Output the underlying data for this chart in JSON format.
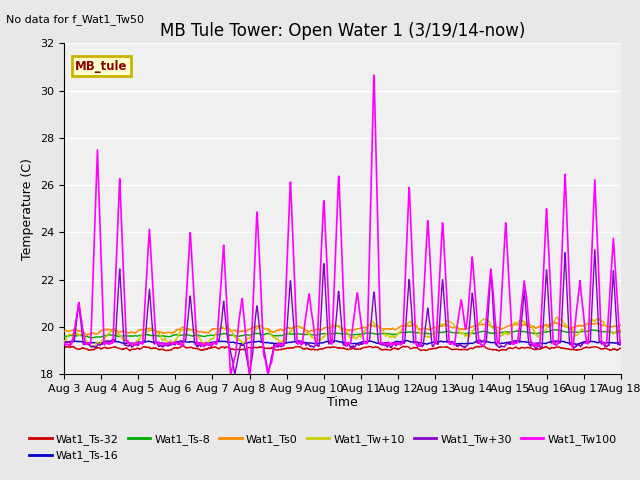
{
  "title": "MB Tule Tower: Open Water 1 (3/19/14-now)",
  "top_left_text": "No data for f_Wat1_Tw50",
  "xlabel": "Time",
  "ylabel": "Temperature (C)",
  "ylim": [
    18,
    32
  ],
  "xlim": [
    0,
    15
  ],
  "yticks": [
    18,
    20,
    22,
    24,
    26,
    28,
    30,
    32
  ],
  "xtick_labels": [
    "Aug 3",
    "Aug 4",
    "Aug 5",
    "Aug 6",
    "Aug 7",
    "Aug 8",
    "Aug 9",
    "Aug 10",
    "Aug 11",
    "Aug 12",
    "Aug 13",
    "Aug 14",
    "Aug 15",
    "Aug 16",
    "Aug 17",
    "Aug 18"
  ],
  "legend_box_text": "MB_tule",
  "legend_box_color": "#c8b400",
  "legend_box_bg": "#ffffcc",
  "series": [
    {
      "name": "Wat1_Ts-32",
      "color": "#cc0000",
      "lw": 1.0
    },
    {
      "name": "Wat1_Ts-16",
      "color": "#0000cc",
      "lw": 1.0
    },
    {
      "name": "Wat1_Ts-8",
      "color": "#00aa00",
      "lw": 1.0
    },
    {
      "name": "Wat1_Ts0",
      "color": "#ff8800",
      "lw": 1.0
    },
    {
      "name": "Wat1_Tw+10",
      "color": "#cccc00",
      "lw": 1.0
    },
    {
      "name": "Wat1_Tw+30",
      "color": "#8800cc",
      "lw": 1.0
    },
    {
      "name": "Wat1_Tw100",
      "color": "#ff00ff",
      "lw": 1.2
    }
  ],
  "background_color": "#e8e8e8",
  "plot_bg": "#f0f0f0",
  "grid_color": "#ffffff",
  "title_fontsize": 12,
  "axis_fontsize": 9,
  "tick_fontsize": 8,
  "figsize": [
    6.4,
    4.8
  ],
  "dpi": 100,
  "tw100_peaks_x": [
    0.4,
    0.9,
    1.5,
    2.3,
    3.4,
    4.3,
    4.8,
    5.2,
    6.1,
    6.6,
    7.0,
    7.4,
    7.9,
    8.35,
    9.3,
    9.8,
    10.2,
    10.7,
    11.0,
    11.5,
    11.9,
    12.4,
    13.0,
    13.5,
    13.9,
    14.3,
    14.8
  ],
  "tw100_peaks_y": [
    21.0,
    27.5,
    26.3,
    24.2,
    24.0,
    23.5,
    21.3,
    25.0,
    26.3,
    21.5,
    25.5,
    26.5,
    21.5,
    31.0,
    26.0,
    24.6,
    24.5,
    21.2,
    23.0,
    22.5,
    24.5,
    22.0,
    25.0,
    26.5,
    22.0,
    26.3,
    23.8
  ],
  "tw30_peaks_x": [
    0.4,
    1.5,
    2.3,
    3.4,
    4.3,
    5.2,
    6.1,
    7.0,
    7.4,
    8.35,
    9.3,
    9.8,
    10.2,
    11.0,
    11.5,
    12.4,
    13.0,
    13.5,
    14.3,
    14.8
  ],
  "tw30_peaks_y": [
    21.0,
    22.5,
    21.5,
    21.3,
    21.0,
    20.8,
    22.0,
    22.8,
    21.5,
    21.5,
    22.0,
    21.0,
    22.0,
    21.5,
    22.5,
    21.5,
    22.5,
    23.2,
    23.2,
    22.5
  ]
}
